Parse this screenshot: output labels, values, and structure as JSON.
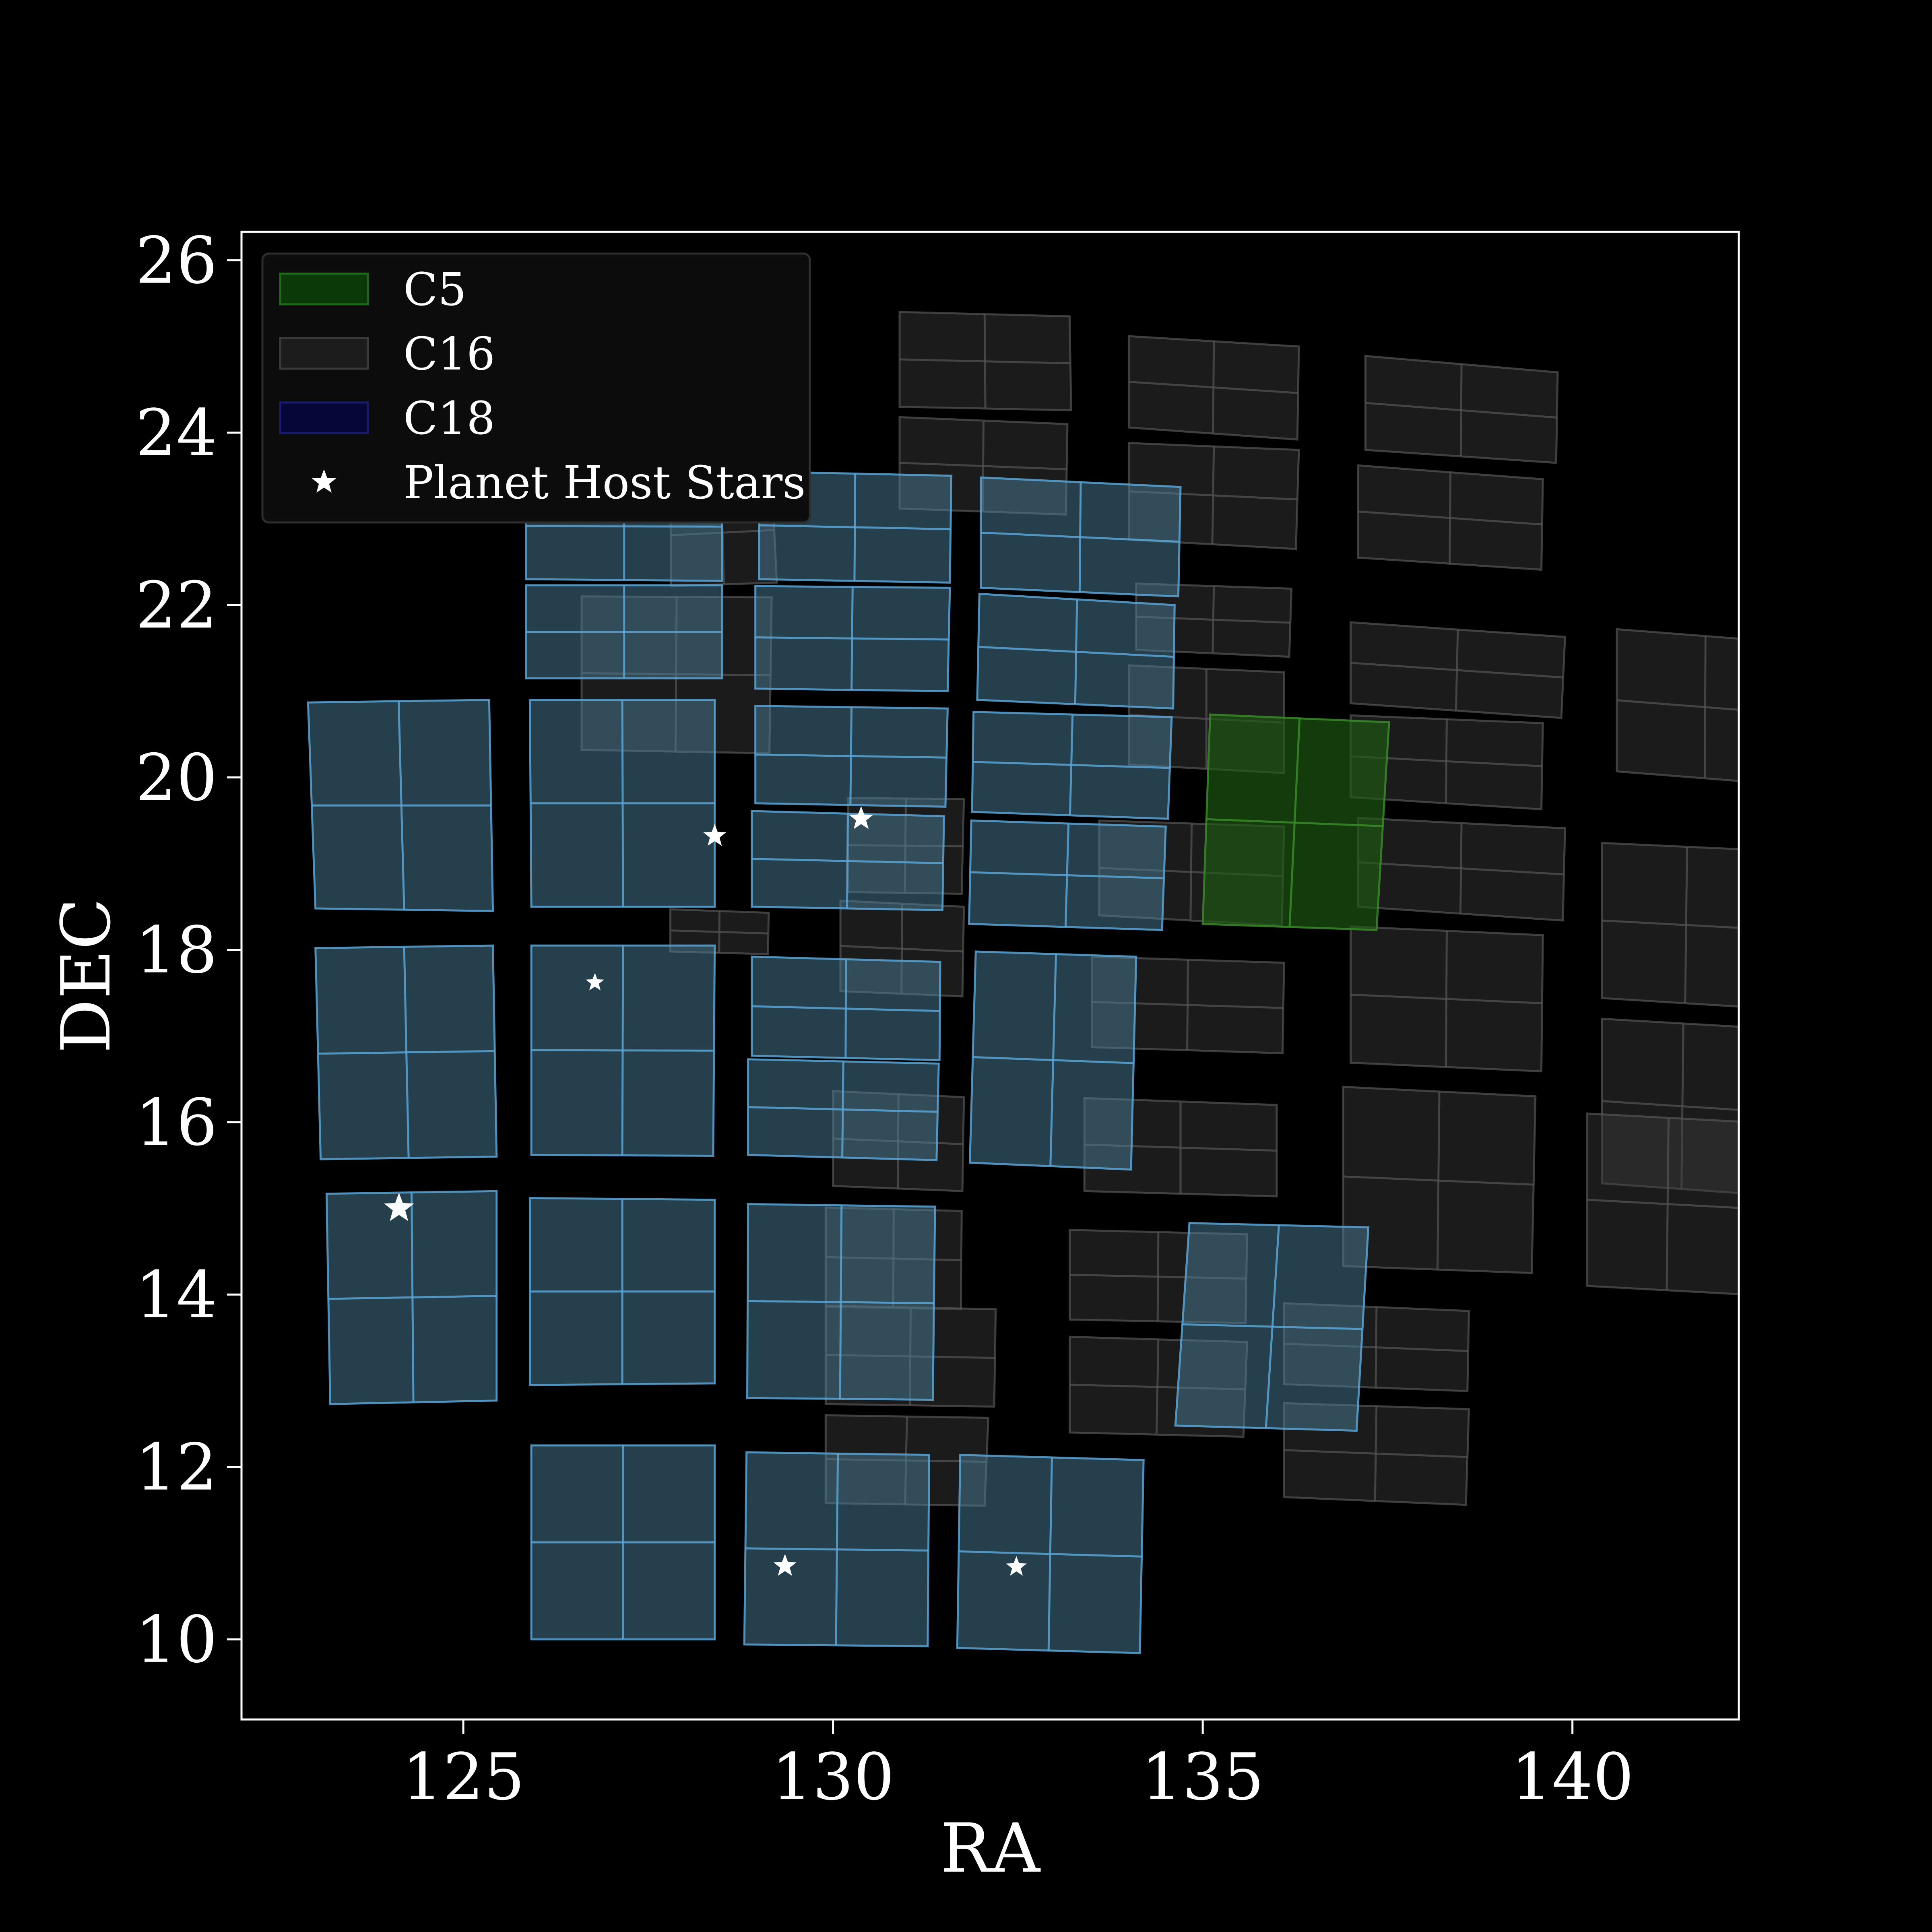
{
  "chart_data": {
    "type": "scatter",
    "title": "",
    "xlabel": "RA",
    "ylabel": "DEC",
    "xlim": [
      122,
      142.25
    ],
    "ylim": [
      9.07,
      26.33
    ],
    "xticks": [
      125,
      130,
      135,
      140
    ],
    "yticks": [
      10,
      12,
      14,
      16,
      18,
      20,
      22,
      24,
      26
    ],
    "grid": false,
    "legend_position": "top-left",
    "background": "#000000",
    "foreground": "#ffffff",
    "legend": [
      {
        "label": "C5",
        "kind": "patch",
        "fill": "#0b3a08",
        "edge": "#1d6a16"
      },
      {
        "label": "C16",
        "kind": "patch",
        "fill": "#1c1c1c",
        "edge": "#3a3a3a"
      },
      {
        "label": "C18",
        "kind": "patch",
        "fill": "#060638",
        "edge": "#1a1a70"
      },
      {
        "label": "Planet Host Stars",
        "kind": "star",
        "fill": "#ffffff"
      }
    ],
    "campaigns": [
      {
        "name": "C16",
        "fill": "#3c3c3c",
        "fill_opacity": 0.45,
        "edge": "#555555",
        "edge_opacity": 0.7,
        "modules": [
          [
            [
              127.8,
              23.4
            ],
            [
              129.17,
              23.48
            ],
            [
              129.24,
              22.26
            ],
            [
              127.81,
              22.22
            ]
          ],
          [
            [
              130.9,
              25.4
            ],
            [
              133.2,
              25.35
            ],
            [
              133.22,
              24.26
            ],
            [
              130.9,
              24.3
            ]
          ],
          [
            [
              134.0,
              25.12
            ],
            [
              136.3,
              25.0
            ],
            [
              136.28,
              23.92
            ],
            [
              134.0,
              24.06
            ]
          ],
          [
            [
              137.2,
              24.89
            ],
            [
              139.8,
              24.7
            ],
            [
              139.78,
              23.65
            ],
            [
              137.2,
              23.8
            ]
          ],
          [
            [
              130.9,
              24.18
            ],
            [
              133.17,
              24.1
            ],
            [
              133.15,
              23.05
            ],
            [
              130.9,
              23.12
            ]
          ],
          [
            [
              134.0,
              23.88
            ],
            [
              136.3,
              23.8
            ],
            [
              136.26,
              22.65
            ],
            [
              134.0,
              22.76
            ]
          ],
          [
            [
              137.1,
              23.62
            ],
            [
              139.6,
              23.46
            ],
            [
              139.58,
              22.41
            ],
            [
              137.1,
              22.55
            ]
          ],
          [
            [
              126.6,
              22.1
            ],
            [
              129.17,
              22.09
            ],
            [
              129.14,
              20.28
            ],
            [
              126.6,
              20.32
            ]
          ],
          [
            [
              134.1,
              22.25
            ],
            [
              136.2,
              22.19
            ],
            [
              136.17,
              21.4
            ],
            [
              134.1,
              21.48
            ]
          ],
          [
            [
              137.0,
              21.8
            ],
            [
              139.9,
              21.63
            ],
            [
              139.85,
              20.69
            ],
            [
              137.0,
              20.86
            ]
          ],
          [
            [
              140.6,
              21.72
            ],
            [
              143.0,
              21.56
            ],
            [
              142.98,
              19.91
            ],
            [
              140.6,
              20.07
            ]
          ],
          [
            [
              134.0,
              21.3
            ],
            [
              136.1,
              21.22
            ],
            [
              136.1,
              20.05
            ],
            [
              134.0,
              20.15
            ]
          ],
          [
            [
              137.0,
              20.72
            ],
            [
              139.6,
              20.63
            ],
            [
              139.58,
              19.63
            ],
            [
              137.0,
              19.77
            ]
          ],
          [
            [
              130.2,
              19.76
            ],
            [
              131.77,
              19.75
            ],
            [
              131.74,
              18.65
            ],
            [
              130.2,
              18.67
            ]
          ],
          [
            [
              133.6,
              19.5
            ],
            [
              136.1,
              19.43
            ],
            [
              136.07,
              18.28
            ],
            [
              133.6,
              18.4
            ]
          ],
          [
            [
              137.1,
              19.53
            ],
            [
              139.9,
              19.41
            ],
            [
              139.87,
              18.34
            ],
            [
              137.1,
              18.5
            ]
          ],
          [
            [
              140.4,
              19.24
            ],
            [
              142.7,
              19.15
            ],
            [
              142.65,
              17.32
            ],
            [
              140.4,
              17.44
            ]
          ],
          [
            [
              127.8,
              18.47
            ],
            [
              129.13,
              18.43
            ],
            [
              129.12,
              17.95
            ],
            [
              127.8,
              17.98
            ]
          ],
          [
            [
              130.1,
              18.57
            ],
            [
              131.77,
              18.5
            ],
            [
              131.75,
              17.46
            ],
            [
              130.1,
              17.52
            ]
          ],
          [
            [
              133.5,
              17.92
            ],
            [
              136.1,
              17.85
            ],
            [
              136.08,
              16.8
            ],
            [
              133.5,
              16.87
            ]
          ],
          [
            [
              137.0,
              18.27
            ],
            [
              139.6,
              18.17
            ],
            [
              139.58,
              16.59
            ],
            [
              137.0,
              16.69
            ]
          ],
          [
            [
              140.4,
              17.2
            ],
            [
              142.6,
              17.09
            ],
            [
              142.55,
              15.16
            ],
            [
              140.4,
              15.29
            ]
          ],
          [
            [
              130.0,
              16.36
            ],
            [
              131.77,
              16.29
            ],
            [
              131.75,
              15.2
            ],
            [
              130.0,
              15.26
            ]
          ],
          [
            [
              133.4,
              16.28
            ],
            [
              136.0,
              16.2
            ],
            [
              136.0,
              15.14
            ],
            [
              133.4,
              15.2
            ]
          ],
          [
            [
              136.9,
              16.41
            ],
            [
              139.5,
              16.3
            ],
            [
              139.45,
              14.25
            ],
            [
              136.9,
              14.33
            ]
          ],
          [
            [
              140.2,
              16.1
            ],
            [
              142.4,
              16.0
            ],
            [
              142.35,
              14.0
            ],
            [
              140.2,
              14.1
            ]
          ],
          [
            [
              129.9,
              15.01
            ],
            [
              131.74,
              14.97
            ],
            [
              131.73,
              13.83
            ],
            [
              129.9,
              13.86
            ]
          ],
          [
            [
              133.2,
              14.75
            ],
            [
              135.6,
              14.7
            ],
            [
              135.58,
              13.67
            ],
            [
              133.2,
              13.71
            ]
          ],
          [
            [
              136.1,
              13.9
            ],
            [
              138.6,
              13.81
            ],
            [
              138.58,
              12.88
            ],
            [
              136.1,
              12.96
            ]
          ],
          [
            [
              129.9,
              13.87
            ],
            [
              132.2,
              13.83
            ],
            [
              132.18,
              12.7
            ],
            [
              129.9,
              12.73
            ]
          ],
          [
            [
              133.2,
              13.51
            ],
            [
              135.6,
              13.45
            ],
            [
              135.55,
              12.35
            ],
            [
              133.2,
              12.4
            ]
          ],
          [
            [
              136.1,
              12.74
            ],
            [
              138.6,
              12.67
            ],
            [
              138.56,
              11.56
            ],
            [
              136.1,
              11.65
            ]
          ],
          [
            [
              129.9,
              12.6
            ],
            [
              132.1,
              12.57
            ],
            [
              132.05,
              11.55
            ],
            [
              129.9,
              11.58
            ]
          ]
        ]
      },
      {
        "name": "C5",
        "fill": "#1d5a12",
        "fill_opacity": 0.65,
        "edge": "#3a8a2a",
        "edge_opacity": 0.85,
        "modules": [
          [
            [
              135.1,
              20.73
            ],
            [
              137.52,
              20.64
            ],
            [
              137.35,
              18.23
            ],
            [
              135.0,
              18.3
            ]
          ]
        ]
      },
      {
        "name": "C18",
        "fill": "#4a7d99",
        "fill_opacity": 0.5,
        "edge": "#5ba4d6",
        "edge_opacity": 0.85,
        "modules": [
          [
            [
              125.85,
              23.53
            ],
            [
              128.5,
              23.54
            ],
            [
              128.5,
              22.28
            ],
            [
              125.85,
              22.3
            ]
          ],
          [
            [
              129.0,
              23.55
            ],
            [
              131.6,
              23.5
            ],
            [
              131.58,
              22.26
            ],
            [
              129.0,
              22.3
            ]
          ],
          [
            [
              132.0,
              23.48
            ],
            [
              134.7,
              23.37
            ],
            [
              134.67,
              22.1
            ],
            [
              132.0,
              22.2
            ]
          ],
          [
            [
              125.85,
              22.23
            ],
            [
              128.5,
              22.23
            ],
            [
              128.5,
              21.15
            ],
            [
              125.85,
              21.15
            ]
          ],
          [
            [
              128.95,
              22.22
            ],
            [
              131.58,
              22.2
            ],
            [
              131.55,
              21.0
            ],
            [
              128.95,
              21.03
            ]
          ],
          [
            [
              131.98,
              22.13
            ],
            [
              134.62,
              22.0
            ],
            [
              134.6,
              20.8
            ],
            [
              131.95,
              20.9
            ]
          ],
          [
            [
              122.9,
              20.87
            ],
            [
              125.35,
              20.9
            ],
            [
              125.4,
              18.45
            ],
            [
              123.0,
              18.48
            ]
          ],
          [
            [
              125.9,
              20.9
            ],
            [
              128.4,
              20.9
            ],
            [
              128.4,
              18.5
            ],
            [
              125.92,
              18.5
            ]
          ],
          [
            [
              128.95,
              20.83
            ],
            [
              131.55,
              20.8
            ],
            [
              131.52,
              19.66
            ],
            [
              128.95,
              19.7
            ]
          ],
          [
            [
              131.9,
              20.76
            ],
            [
              134.58,
              20.7
            ],
            [
              134.53,
              19.52
            ],
            [
              131.88,
              19.6
            ]
          ],
          [
            [
              128.9,
              19.61
            ],
            [
              131.5,
              19.55
            ],
            [
              131.48,
              18.46
            ],
            [
              128.9,
              18.5
            ]
          ],
          [
            [
              131.87,
              19.5
            ],
            [
              134.5,
              19.43
            ],
            [
              134.45,
              18.23
            ],
            [
              131.84,
              18.3
            ]
          ],
          [
            [
              123.0,
              18.02
            ],
            [
              125.4,
              18.05
            ],
            [
              125.45,
              15.6
            ],
            [
              123.07,
              15.57
            ]
          ],
          [
            [
              125.92,
              18.05
            ],
            [
              128.4,
              18.05
            ],
            [
              128.38,
              15.61
            ],
            [
              125.92,
              15.62
            ]
          ],
          [
            [
              128.9,
              17.92
            ],
            [
              131.45,
              17.86
            ],
            [
              131.44,
              16.72
            ],
            [
              128.9,
              16.77
            ]
          ],
          [
            [
              131.93,
              17.98
            ],
            [
              134.1,
              17.92
            ],
            [
              134.03,
              15.45
            ],
            [
              131.85,
              15.53
            ]
          ],
          [
            [
              128.85,
              16.73
            ],
            [
              131.43,
              16.68
            ],
            [
              131.4,
              15.56
            ],
            [
              128.85,
              15.62
            ]
          ],
          [
            [
              123.15,
              15.17
            ],
            [
              125.45,
              15.2
            ],
            [
              125.45,
              12.77
            ],
            [
              123.2,
              12.73
            ]
          ],
          [
            [
              125.9,
              15.12
            ],
            [
              128.4,
              15.1
            ],
            [
              128.4,
              12.97
            ],
            [
              125.9,
              12.95
            ]
          ],
          [
            [
              128.85,
              15.05
            ],
            [
              131.38,
              15.02
            ],
            [
              131.35,
              12.78
            ],
            [
              128.84,
              12.8
            ]
          ],
          [
            [
              134.82,
              14.83
            ],
            [
              137.24,
              14.78
            ],
            [
              137.08,
              12.42
            ],
            [
              134.63,
              12.48
            ]
          ],
          [
            [
              125.92,
              12.25
            ],
            [
              128.4,
              12.25
            ],
            [
              128.4,
              10.0
            ],
            [
              125.92,
              10.0
            ]
          ],
          [
            [
              128.83,
              12.17
            ],
            [
              131.3,
              12.14
            ],
            [
              131.28,
              9.92
            ],
            [
              128.8,
              9.94
            ]
          ],
          [
            [
              131.72,
              12.14
            ],
            [
              134.2,
              12.08
            ],
            [
              134.15,
              9.84
            ],
            [
              131.68,
              9.9
            ]
          ]
        ]
      }
    ],
    "stars": [
      {
        "ra": 124.13,
        "dec": 15.0,
        "size": 1.3
      },
      {
        "ra": 126.78,
        "dec": 17.62,
        "size": 0.8
      },
      {
        "ra": 128.4,
        "dec": 19.32,
        "size": 1.0
      },
      {
        "ra": 130.38,
        "dec": 19.52,
        "size": 1.05
      },
      {
        "ra": 129.35,
        "dec": 10.85,
        "size": 1.0
      },
      {
        "ra": 132.48,
        "dec": 10.84,
        "size": 0.9
      }
    ]
  }
}
